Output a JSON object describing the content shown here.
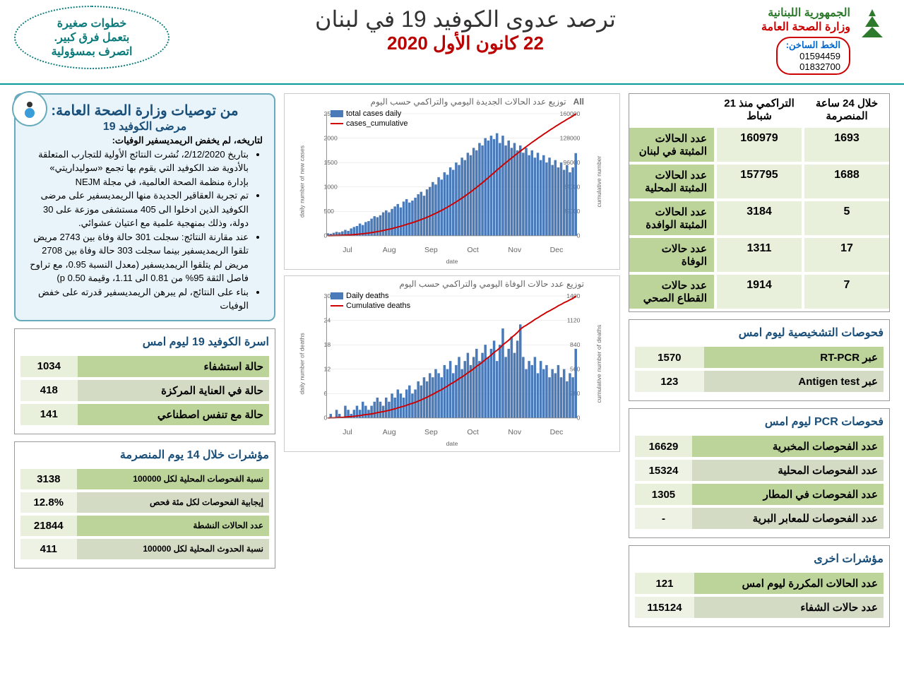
{
  "header": {
    "org1": "الجمهورية اللبنانية",
    "org2": "وزارة الصحة العامة",
    "hotline_label": "الخط الساخن:",
    "hotline1": "01594459",
    "hotline2": "01832700",
    "title": "ترصد عدوى الكوفيد 19 في لبنان",
    "date": "22 كانون الأول 2020",
    "tip_line1": "خطوات صغيرة",
    "tip_line2": "بتعمل فرق كبير.",
    "tip_line3": "اتصرف بمسؤولية"
  },
  "main_stats": {
    "col_24h": "خلال 24 ساعة المنصرمة",
    "col_cum": "التراكمي منذ 21 شباط",
    "rows": [
      {
        "label": "عدد الحالات المثبتة في لبنان",
        "v24": "1693",
        "cum": "160979"
      },
      {
        "label": "عدد الحالات المثبتة المحلية",
        "v24": "1688",
        "cum": "157795"
      },
      {
        "label": "عدد الحالات المثبتة الوافدة",
        "v24": "5",
        "cum": "3184"
      },
      {
        "label": "عدد حالات الوفاة",
        "v24": "17",
        "cum": "1311"
      },
      {
        "label": "عدد حالات القطاع الصحي",
        "v24": "7",
        "cum": "1914"
      }
    ]
  },
  "reco": {
    "title": "من توصيات وزارة الصحة العامة:",
    "sub": "مرضى الكوفيد 19",
    "lead": "لتاريخه، لم يخفض الريمديسفير الوفيات:",
    "b1": "بتاريخ 2/12/2020، نُشرت النتائج الأولية للتجارب المتعلقة بالأدوية ضد الكوفيد التي يقوم بها تجمع «سوليداريتي» بإدارة منظمة الصحة العالمية، في مجلة NEJM",
    "b2": "تم تجربة العقاقير الجديدة منها الريمديسفير على مرضى الكوفيد الذين ادخلوا الى 405 مستشفى موزعة على 30 دولة، وذلك بمنهجية علمية مع اعتيان عشوائي.",
    "b3": "عند مقارنة النتائج: سجلت 301 حالة وفاة بين 2743 مريض تلقوا الريمديسفير بينما سجلت 303 حالة وفاة بين 2708 مريض لم يتلقوا الريمديسفير (معدل النسبة 0.95، مع تراوح فاصل الثقة 95% من 0.81 الى 1.11، وقيمة p 0.50)",
    "b4": "بناء على النتائج، لم يبرهن الريمديسفير قدرته على خفض الوفيات"
  },
  "diag": {
    "title": "فحوصات التشخيصية ليوم امس",
    "rows": [
      {
        "label": "عبر RT-PCR",
        "val": "1570"
      },
      {
        "label": "عبر Antigen test",
        "val": "123"
      }
    ]
  },
  "pcr": {
    "title": "فحوصات PCR ليوم امس",
    "rows": [
      {
        "label": "عدد الفحوصات المخبرية",
        "val": "16629"
      },
      {
        "label": "عدد الفحوصات المحلية",
        "val": "15324"
      },
      {
        "label": "عدد الفحوصات في المطار",
        "val": "1305"
      },
      {
        "label": "عدد الفحوصات للمعابر البرية",
        "val": "-"
      }
    ]
  },
  "other": {
    "title": "مؤشرات اخرى",
    "rows": [
      {
        "label": "عدد الحالات المكررة ليوم امس",
        "val": "121"
      },
      {
        "label": "عدد حالات الشفاء",
        "val": "115124"
      }
    ]
  },
  "beds": {
    "title": "اسرة الكوفيد 19 ليوم امس",
    "rows": [
      {
        "label": "حالة استشفاء",
        "val": "1034"
      },
      {
        "label": "حالة في العناية المركزة",
        "val": "418"
      },
      {
        "label": "حالة مع تنفس اصطناعي",
        "val": "141"
      }
    ]
  },
  "ind14": {
    "title": "مؤشرات خلال 14 يوم المنصرمة",
    "rows": [
      {
        "label": "نسبة الفحوصات المحلية لكل 100000",
        "val": "3138"
      },
      {
        "label": "إيجابية الفحوصات لكل مئة فحص",
        "val": "12.8%"
      },
      {
        "label": "عدد الحالات النشطة",
        "val": "21844"
      },
      {
        "label": "نسبة الحدوث المحلية لكل 100000",
        "val": "411"
      }
    ]
  },
  "chart1": {
    "title": "توزيع عدد الحالات الجديدة اليومي والتراكمي حسب اليوم",
    "legend_bar": "total cases daily",
    "legend_line": "cases_cumulative",
    "y1_label": "daily number of new cases",
    "y2_label": "cumulative number",
    "x_label": "date",
    "y1_max": 2500,
    "y2_max": 160000,
    "months": [
      "Jul",
      "Aug",
      "Sep",
      "Oct",
      "Nov",
      "Dec"
    ],
    "bar_color": "#4a7ab8",
    "line_color": "#c00",
    "bars": [
      50,
      40,
      60,
      80,
      70,
      90,
      120,
      100,
      150,
      180,
      200,
      250,
      220,
      280,
      300,
      350,
      400,
      380,
      420,
      480,
      520,
      480,
      550,
      600,
      650,
      580,
      700,
      750,
      680,
      720,
      780,
      850,
      900,
      820,
      950,
      1000,
      1100,
      1050,
      1200,
      1150,
      1300,
      1250,
      1400,
      1350,
      1500,
      1450,
      1600,
      1550,
      1700,
      1650,
      1800,
      1750,
      1900,
      1850,
      2000,
      1950,
      2050,
      1980,
      2100,
      1900,
      2050,
      1850,
      1950,
      1800,
      1900,
      1750,
      1850,
      1700,
      1800,
      1650,
      1750,
      1600,
      1700,
      1550,
      1650,
      1500,
      1600,
      1450,
      1550,
      1400,
      1500,
      1350,
      1450,
      1300,
      1400,
      1693
    ]
  },
  "chart2": {
    "title": "توزيع عدد حالات الوفاة اليومي والتراكمي حسب اليوم",
    "legend_bar": "Daily deaths",
    "legend_line": "Cumulative deaths",
    "y1_label": "daily number of deaths",
    "y2_label": "cumulative number of deaths",
    "x_label": "date",
    "y1_max": 30,
    "y2_max": 1400,
    "months": [
      "Jul",
      "Aug",
      "Sep",
      "Oct",
      "Nov",
      "Dec"
    ],
    "bar_color": "#4a7ab8",
    "line_color": "#c00",
    "bars": [
      0,
      1,
      0,
      2,
      1,
      0,
      3,
      2,
      1,
      2,
      3,
      2,
      4,
      3,
      2,
      3,
      4,
      5,
      4,
      3,
      5,
      4,
      6,
      5,
      7,
      6,
      5,
      7,
      8,
      6,
      7,
      9,
      8,
      10,
      9,
      11,
      10,
      12,
      11,
      10,
      13,
      12,
      14,
      11,
      13,
      15,
      12,
      14,
      16,
      13,
      15,
      17,
      14,
      16,
      18,
      15,
      17,
      19,
      14,
      18,
      22,
      15,
      17,
      20,
      16,
      19,
      23,
      15,
      12,
      14,
      13,
      15,
      11,
      14,
      12,
      13,
      10,
      12,
      11,
      13,
      10,
      12,
      9,
      11,
      10,
      17
    ]
  }
}
